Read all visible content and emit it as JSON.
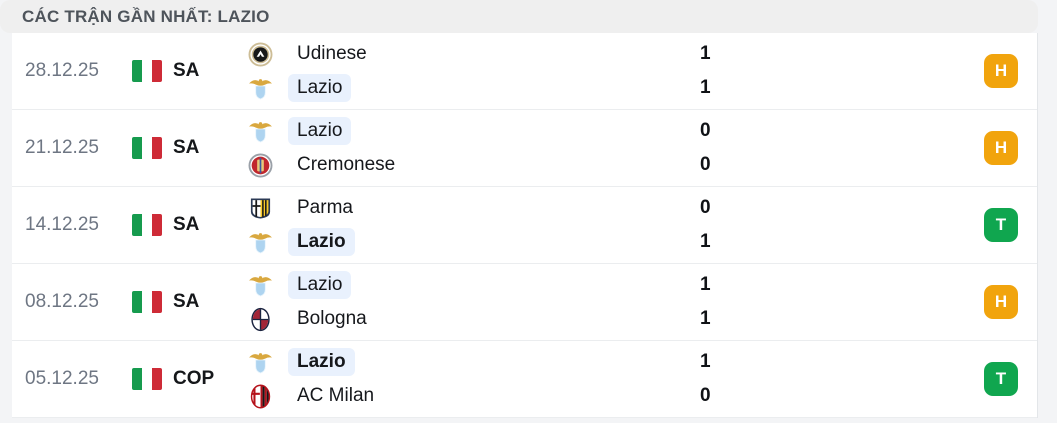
{
  "header": {
    "title": "CÁC TRẬN GẦN NHẤT: LAZIO"
  },
  "colors": {
    "draw_badge": "#f1a40d",
    "win_badge": "#10a64f",
    "lazio_highlight": "#e9f1fd",
    "flag_green": "#169b4e",
    "flag_red": "#ce2b37"
  },
  "matches": [
    {
      "date": "28.12.25",
      "flag": "italy-flag",
      "competition": "SA",
      "home": {
        "name": "Udinese",
        "score": "1",
        "crest": "udinese",
        "highlight": false,
        "bold": false
      },
      "away": {
        "name": "Lazio",
        "score": "1",
        "crest": "lazio",
        "highlight": true,
        "bold": false
      },
      "result": {
        "label": "H",
        "type": "draw"
      }
    },
    {
      "date": "21.12.25",
      "flag": "italy-flag",
      "competition": "SA",
      "home": {
        "name": "Lazio",
        "score": "0",
        "crest": "lazio",
        "highlight": true,
        "bold": false
      },
      "away": {
        "name": "Cremonese",
        "score": "0",
        "crest": "cremonese",
        "highlight": false,
        "bold": false
      },
      "result": {
        "label": "H",
        "type": "draw"
      }
    },
    {
      "date": "14.12.25",
      "flag": "italy-flag",
      "competition": "SA",
      "home": {
        "name": "Parma",
        "score": "0",
        "crest": "parma",
        "highlight": false,
        "bold": false
      },
      "away": {
        "name": "Lazio",
        "score": "1",
        "crest": "lazio",
        "highlight": true,
        "bold": true
      },
      "result": {
        "label": "T",
        "type": "win"
      }
    },
    {
      "date": "08.12.25",
      "flag": "italy-flag",
      "competition": "SA",
      "home": {
        "name": "Lazio",
        "score": "1",
        "crest": "lazio",
        "highlight": true,
        "bold": false
      },
      "away": {
        "name": "Bologna",
        "score": "1",
        "crest": "bologna",
        "highlight": false,
        "bold": false
      },
      "result": {
        "label": "H",
        "type": "draw"
      }
    },
    {
      "date": "05.12.25",
      "flag": "italy-flag",
      "competition": "COP",
      "home": {
        "name": "Lazio",
        "score": "1",
        "crest": "lazio",
        "highlight": true,
        "bold": true
      },
      "away": {
        "name": "AC Milan",
        "score": "0",
        "crest": "acmilan",
        "highlight": false,
        "bold": false
      },
      "result": {
        "label": "T",
        "type": "win"
      }
    }
  ]
}
